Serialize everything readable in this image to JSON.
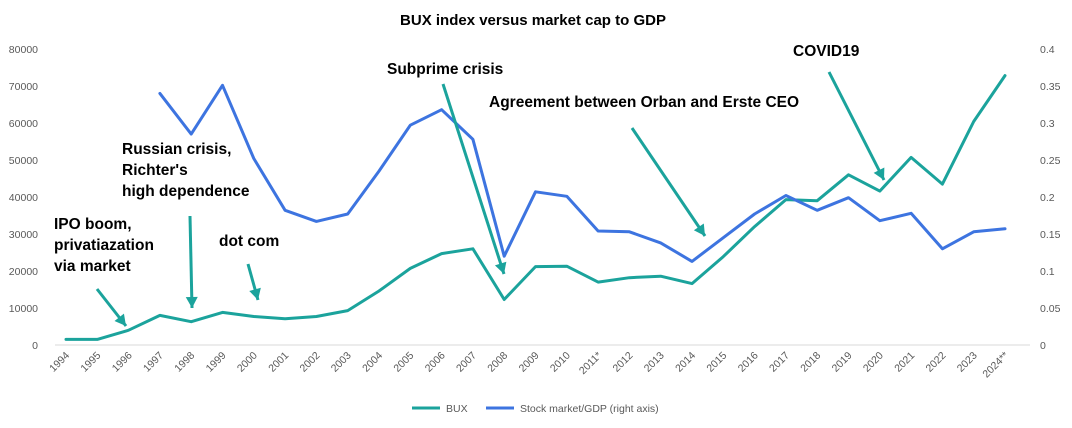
{
  "chart_data": {
    "type": "line",
    "title": "BUX index versus market cap to GDP",
    "categories": [
      "1994",
      "1995",
      "1996",
      "1997",
      "1998",
      "1999",
      "2000",
      "2001",
      "2002",
      "2003",
      "2004",
      "2005",
      "2006",
      "2007",
      "2008",
      "2009",
      "2010",
      "2011*",
      "2012",
      "2013",
      "2014",
      "2015",
      "2016",
      "2017",
      "2018",
      "2019",
      "2020",
      "2021",
      "2022",
      "2023",
      "2024**"
    ],
    "y_left": {
      "min": 0,
      "max": 80000,
      "ticks": [
        "0",
        "10000",
        "20000",
        "30000",
        "40000",
        "50000",
        "60000",
        "70000",
        "80000"
      ]
    },
    "y_right": {
      "min": 0,
      "max": 0.4,
      "ticks": [
        "0",
        "0.05",
        "0.1",
        "0.15",
        "0.2",
        "0.25",
        "0.3",
        "0.35",
        "0.4"
      ]
    },
    "series": [
      {
        "name": "BUX",
        "axis": "left",
        "color": "#1ba39c",
        "values": [
          1500,
          1500,
          4000,
          8000,
          6300,
          8800,
          7700,
          7100,
          7700,
          9300,
          14600,
          20700,
          24700,
          26000,
          12300,
          21200,
          21300,
          17000,
          18200,
          18600,
          16600,
          23900,
          32000,
          39300,
          39000,
          46000,
          41600,
          50700,
          43500,
          60400,
          72800
        ]
      },
      {
        "name": "Stock market/GDP (right axis)",
        "axis": "right",
        "color": "#3d74e0",
        "values": [
          null,
          null,
          null,
          0.34,
          0.285,
          0.351,
          0.252,
          0.182,
          0.167,
          0.177,
          0.235,
          0.297,
          0.318,
          0.278,
          0.12,
          0.207,
          0.201,
          0.154,
          0.153,
          0.138,
          0.113,
          0.145,
          0.177,
          0.202,
          0.182,
          0.199,
          0.168,
          0.178,
          0.13,
          0.153,
          0.157
        ]
      }
    ],
    "annotations": [
      {
        "lines": [
          "IPO boom,",
          "privatiazation",
          "via market"
        ]
      },
      {
        "lines": [
          "Russian crisis,",
          "Richter's",
          "high dependence"
        ]
      },
      {
        "lines": [
          "dot com"
        ]
      },
      {
        "lines": [
          "Subprime crisis"
        ]
      },
      {
        "lines": [
          "Agreement between Orban and Erste CEO"
        ]
      },
      {
        "lines": [
          "COVID19"
        ]
      }
    ],
    "grid": false,
    "legend": "bottom-center"
  }
}
